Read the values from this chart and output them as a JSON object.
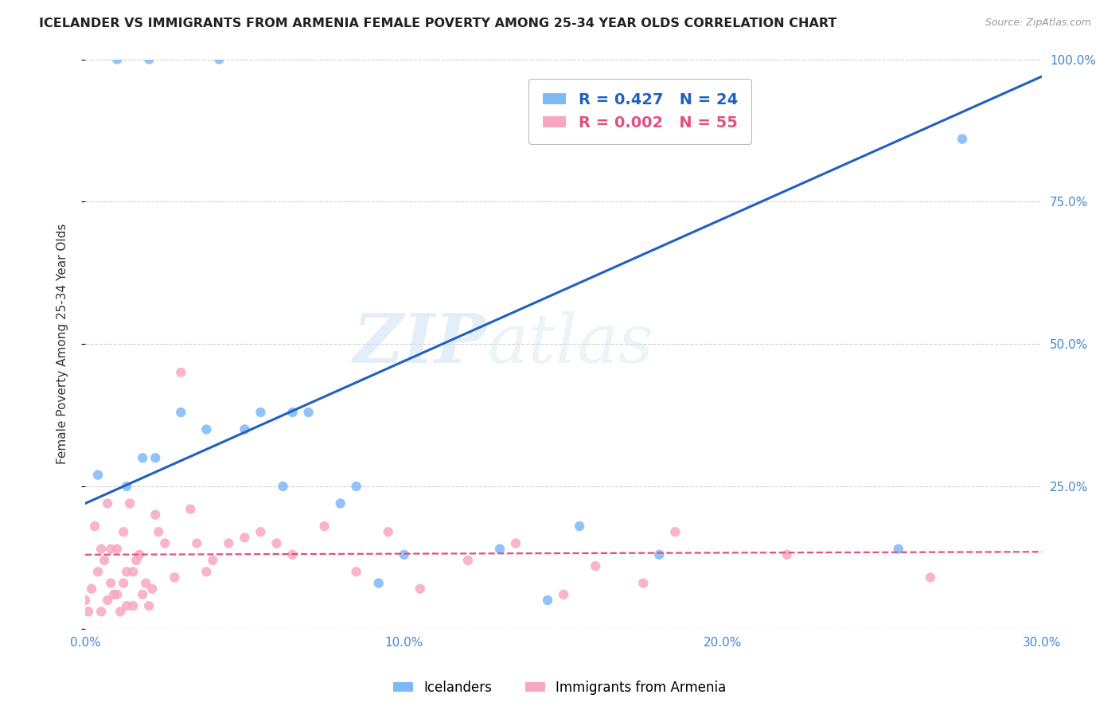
{
  "title": "ICELANDER VS IMMIGRANTS FROM ARMENIA FEMALE POVERTY AMONG 25-34 YEAR OLDS CORRELATION CHART",
  "source": "Source: ZipAtlas.com",
  "ylabel": "Female Poverty Among 25-34 Year Olds",
  "xlim": [
    0.0,
    0.3
  ],
  "ylim": [
    0.0,
    1.0
  ],
  "xticks": [
    0.0,
    0.05,
    0.1,
    0.15,
    0.2,
    0.25,
    0.3
  ],
  "yticks": [
    0.0,
    0.25,
    0.5,
    0.75,
    1.0
  ],
  "ytick_labels": [
    "",
    "25.0%",
    "50.0%",
    "75.0%",
    "100.0%"
  ],
  "xtick_labels": [
    "0.0%",
    "",
    "10.0%",
    "",
    "20.0%",
    "",
    "30.0%"
  ],
  "icelanders_color": "#7eb8f7",
  "armenia_color": "#f7a8c0",
  "icelanders_line_color": "#2060c0",
  "armenia_line_color": "#e05080",
  "R_icelanders": 0.427,
  "N_icelanders": 24,
  "R_armenia": 0.002,
  "N_armenia": 55,
  "icelanders_x": [
    0.004,
    0.01,
    0.013,
    0.018,
    0.02,
    0.022,
    0.03,
    0.038,
    0.042,
    0.05,
    0.055,
    0.062,
    0.065,
    0.07,
    0.08,
    0.085,
    0.092,
    0.1,
    0.13,
    0.145,
    0.155,
    0.18,
    0.255,
    0.275
  ],
  "icelanders_y": [
    0.27,
    1.0,
    0.25,
    0.3,
    1.0,
    0.3,
    0.38,
    0.35,
    1.0,
    0.35,
    0.38,
    0.25,
    0.38,
    0.38,
    0.22,
    0.25,
    0.08,
    0.13,
    0.14,
    0.05,
    0.18,
    0.13,
    0.14,
    0.86
  ],
  "armenia_x": [
    0.0,
    0.001,
    0.002,
    0.003,
    0.004,
    0.005,
    0.005,
    0.006,
    0.007,
    0.007,
    0.008,
    0.008,
    0.009,
    0.01,
    0.01,
    0.011,
    0.012,
    0.012,
    0.013,
    0.013,
    0.014,
    0.015,
    0.015,
    0.016,
    0.017,
    0.018,
    0.019,
    0.02,
    0.021,
    0.022,
    0.023,
    0.025,
    0.028,
    0.03,
    0.033,
    0.035,
    0.038,
    0.04,
    0.045,
    0.05,
    0.055,
    0.06,
    0.065,
    0.075,
    0.085,
    0.095,
    0.105,
    0.12,
    0.135,
    0.15,
    0.16,
    0.175,
    0.185,
    0.22,
    0.265
  ],
  "armenia_y": [
    0.05,
    0.03,
    0.07,
    0.18,
    0.1,
    0.14,
    0.03,
    0.12,
    0.22,
    0.05,
    0.08,
    0.14,
    0.06,
    0.06,
    0.14,
    0.03,
    0.17,
    0.08,
    0.1,
    0.04,
    0.22,
    0.1,
    0.04,
    0.12,
    0.13,
    0.06,
    0.08,
    0.04,
    0.07,
    0.2,
    0.17,
    0.15,
    0.09,
    0.45,
    0.21,
    0.15,
    0.1,
    0.12,
    0.15,
    0.16,
    0.17,
    0.15,
    0.13,
    0.18,
    0.1,
    0.17,
    0.07,
    0.12,
    0.15,
    0.06,
    0.11,
    0.08,
    0.17,
    0.13,
    0.09
  ],
  "icelanders_line_x": [
    0.0,
    0.3
  ],
  "icelanders_line_y": [
    0.22,
    0.97
  ],
  "armenia_line_x": [
    0.0,
    0.3
  ],
  "armenia_line_y": [
    0.13,
    0.135
  ],
  "watermark_zip": "ZIP",
  "watermark_atlas": "atlas",
  "background_color": "#ffffff",
  "grid_color": "#d0d0d0",
  "marker_size": 80
}
